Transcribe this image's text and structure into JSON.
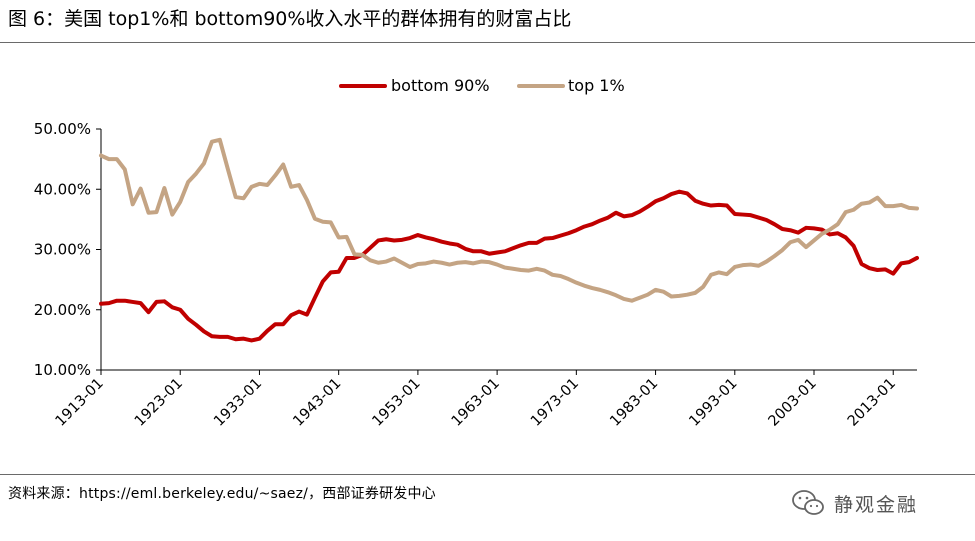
{
  "page": {
    "title": "图 6：美国 top1%和 bottom90%收入水平的群体拥有的财富占比",
    "source": "资料来源：https://eml.berkeley.edu/~saez/，西部证券研发中心",
    "watermark": "静观金融"
  },
  "colors": {
    "bottom90": "#c00000",
    "top1": "#c4a484",
    "rule": "#6a6a6a"
  },
  "chart_data": {
    "type": "line",
    "title": "",
    "xlabel": "",
    "ylabel": "",
    "x_ticks": [
      "1913-01",
      "1923-01",
      "1933-01",
      "1943-01",
      "1953-01",
      "1963-01",
      "1973-01",
      "1983-01",
      "1993-01",
      "2003-01",
      "2013-01"
    ],
    "x_range": [
      1913,
      2016
    ],
    "y_ticks": [
      "10.00%",
      "20.00%",
      "30.00%",
      "40.00%",
      "50.00%"
    ],
    "ylim": [
      10,
      50
    ],
    "y_unit": "%",
    "grid": false,
    "legend": "top-center",
    "x": [
      1913,
      1914,
      1915,
      1916,
      1917,
      1918,
      1919,
      1920,
      1921,
      1922,
      1923,
      1924,
      1925,
      1926,
      1927,
      1928,
      1929,
      1930,
      1931,
      1932,
      1933,
      1934,
      1935,
      1936,
      1937,
      1938,
      1939,
      1940,
      1941,
      1942,
      1943,
      1944,
      1945,
      1946,
      1947,
      1948,
      1949,
      1950,
      1951,
      1952,
      1953,
      1954,
      1955,
      1956,
      1957,
      1958,
      1959,
      1960,
      1961,
      1962,
      1963,
      1964,
      1965,
      1966,
      1967,
      1968,
      1969,
      1970,
      1971,
      1972,
      1973,
      1974,
      1975,
      1976,
      1977,
      1978,
      1979,
      1980,
      1981,
      1982,
      1983,
      1984,
      1985,
      1986,
      1987,
      1988,
      1989,
      1990,
      1991,
      1992,
      1993,
      1994,
      1995,
      1996,
      1997,
      1998,
      1999,
      2000,
      2001,
      2002,
      2003,
      2004,
      2005,
      2006,
      2007,
      2008,
      2009,
      2010,
      2011,
      2012,
      2013,
      2014,
      2015,
      2016
    ],
    "series": [
      {
        "name": "bottom 90%",
        "values": [
          21.0,
          21.1,
          21.5,
          21.5,
          21.3,
          21.1,
          19.6,
          21.3,
          21.4,
          20.4,
          20.0,
          18.5,
          17.5,
          16.4,
          15.6,
          15.5,
          15.5,
          15.1,
          15.2,
          14.9,
          15.2,
          16.5,
          17.6,
          17.6,
          19.1,
          19.7,
          19.2,
          22.0,
          24.7,
          26.2,
          26.3,
          28.6,
          28.6,
          29.1,
          30.3,
          31.5,
          31.7,
          31.5,
          31.6,
          31.9,
          32.4,
          32.0,
          31.7,
          31.3,
          31.0,
          30.8,
          30.1,
          29.7,
          29.7,
          29.3,
          29.5,
          29.7,
          30.2,
          30.7,
          31.1,
          31.1,
          31.8,
          31.9,
          32.3,
          32.7,
          33.2,
          33.8,
          34.2,
          34.8,
          35.3,
          36.1,
          35.5,
          35.7,
          36.3,
          37.1,
          38.0,
          38.5,
          39.2,
          39.6,
          39.3,
          38.1,
          37.6,
          37.3,
          37.4,
          37.3,
          35.9,
          35.8,
          35.7,
          35.3,
          34.9,
          34.2,
          33.4,
          33.2,
          32.8,
          33.6,
          33.5,
          33.3,
          32.5,
          32.7,
          32.0,
          30.6,
          27.6,
          26.9,
          26.6,
          26.7,
          26.0,
          27.7,
          27.9,
          28.6
        ]
      },
      {
        "name": "top 1%",
        "values": [
          45.6,
          45.0,
          45.0,
          43.3,
          37.5,
          40.1,
          36.1,
          36.2,
          40.2,
          35.8,
          37.9,
          41.2,
          42.6,
          44.3,
          47.9,
          48.2,
          43.4,
          38.7,
          38.5,
          40.4,
          40.9,
          40.7,
          42.3,
          44.1,
          40.4,
          40.7,
          38.2,
          35.1,
          34.6,
          34.5,
          32.0,
          32.1,
          29.2,
          29.1,
          28.2,
          27.8,
          28.0,
          28.5,
          27.8,
          27.1,
          27.6,
          27.7,
          28.0,
          27.8,
          27.5,
          27.8,
          27.9,
          27.7,
          28.0,
          27.9,
          27.5,
          27.0,
          26.8,
          26.6,
          26.5,
          26.8,
          26.5,
          25.8,
          25.6,
          25.1,
          24.5,
          24.0,
          23.6,
          23.3,
          22.9,
          22.4,
          21.8,
          21.5,
          22.0,
          22.5,
          23.3,
          23.0,
          22.2,
          22.3,
          22.5,
          22.8,
          23.8,
          25.8,
          26.2,
          25.9,
          27.1,
          27.4,
          27.5,
          27.3,
          28.0,
          28.9,
          29.9,
          31.2,
          31.6,
          30.4,
          31.5,
          32.6,
          33.3,
          34.2,
          36.2,
          36.6,
          37.6,
          37.8,
          38.6,
          37.2,
          37.2,
          37.4,
          36.9,
          36.8
        ]
      }
    ]
  }
}
